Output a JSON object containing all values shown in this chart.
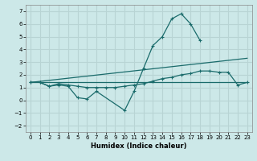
{
  "xlabel": "Humidex (Indice chaleur)",
  "ylabel": "",
  "bg_color": "#cce8e8",
  "grid_color": "#b8d4d4",
  "line_color": "#1a6b6b",
  "xlim": [
    -0.5,
    23.5
  ],
  "ylim": [
    -2.5,
    7.5
  ],
  "xticks": [
    0,
    1,
    2,
    3,
    4,
    5,
    6,
    7,
    8,
    9,
    10,
    11,
    12,
    13,
    14,
    15,
    16,
    17,
    18,
    19,
    20,
    21,
    22,
    23
  ],
  "yticks": [
    -2,
    -1,
    0,
    1,
    2,
    3,
    4,
    5,
    6,
    7
  ],
  "line1_x": [
    0,
    1,
    2,
    3,
    4,
    5,
    6,
    7,
    10,
    11,
    12,
    13,
    14,
    15,
    16,
    17,
    18
  ],
  "line1_y": [
    1.4,
    1.4,
    1.1,
    1.2,
    1.1,
    0.2,
    0.1,
    0.7,
    -0.8,
    0.7,
    2.5,
    4.3,
    5.0,
    6.4,
    6.8,
    6.0,
    4.7
  ],
  "line2_x": [
    0,
    1,
    2,
    3,
    4,
    5,
    6,
    7,
    8,
    9,
    10,
    11,
    12,
    13,
    14,
    15,
    16,
    17,
    18,
    19,
    20,
    21,
    22,
    23
  ],
  "line2_y": [
    1.4,
    1.4,
    1.1,
    1.3,
    1.2,
    1.1,
    1.0,
    1.0,
    1.0,
    1.0,
    1.1,
    1.2,
    1.3,
    1.5,
    1.7,
    1.8,
    2.0,
    2.1,
    2.3,
    2.3,
    2.2,
    2.2,
    1.2,
    1.4
  ],
  "line3_x": [
    0,
    23
  ],
  "line3_y": [
    1.4,
    1.4
  ],
  "line4_x": [
    0,
    23
  ],
  "line4_y": [
    1.4,
    3.3
  ]
}
